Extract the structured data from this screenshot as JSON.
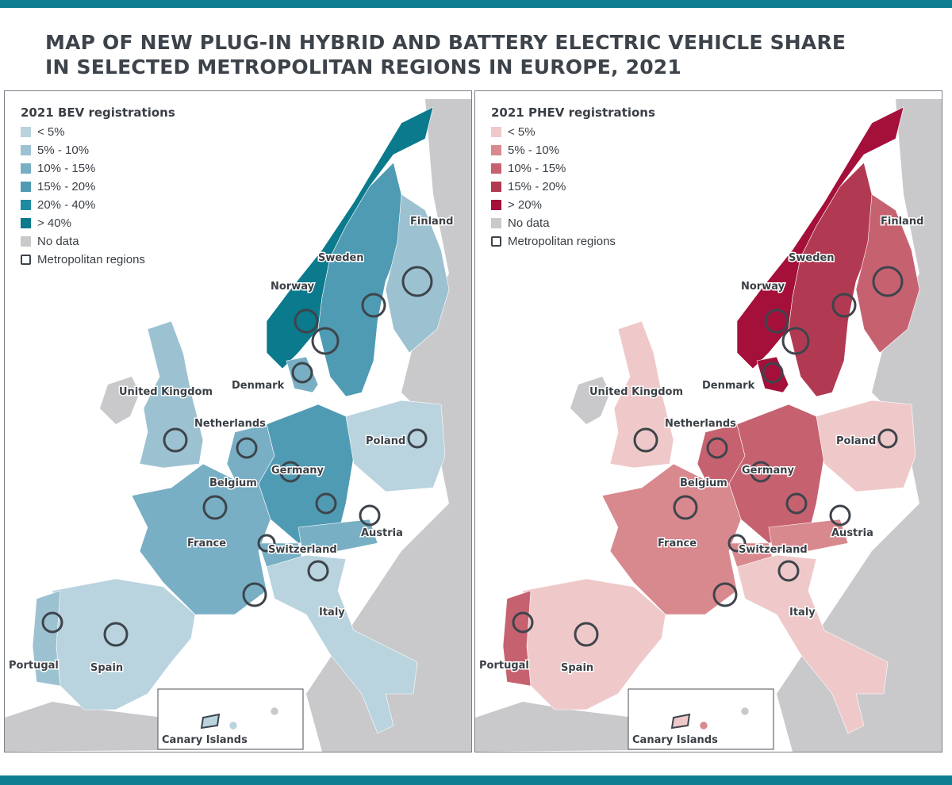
{
  "page": {
    "title_line1": "MAP OF NEW PLUG-IN HYBRID AND BATTERY ELECTRIC VEHICLE SHARE",
    "title_line2": "IN SELECTED METROPOLITAN REGIONS IN EUROPE, 2021",
    "accent_color": "#0f7e93"
  },
  "maps": [
    {
      "id": "bev",
      "legend_title": "2021 BEV registrations",
      "legend": [
        {
          "label": "< 5%",
          "color": "#b9d3df"
        },
        {
          "label": "5% - 10%",
          "color": "#9cc2d2"
        },
        {
          "label": "10% - 15%",
          "color": "#78afc5"
        },
        {
          "label": "15% - 20%",
          "color": "#4f9bb3"
        },
        {
          "label": "20% - 40%",
          "color": "#1f8aa0"
        },
        {
          "label": "> 40%",
          "color": "#0a7a8c"
        },
        {
          "label": "No data",
          "color": "#c9c9cc"
        },
        {
          "label": "Metropolitan regions",
          "color": "outline"
        }
      ],
      "countries": {
        "finland": "Finland",
        "sweden": "Sweden",
        "norway": "Norway",
        "denmark": "Denmark",
        "united_kingdom": "United Kingdom",
        "netherlands": "Netherlands",
        "belgium": "Belgium",
        "germany": "Germany",
        "poland": "Poland",
        "france": "France",
        "switzerland": "Switzerland",
        "austria": "Austria",
        "italy": "Italy",
        "spain": "Spain",
        "portugal": "Portugal"
      },
      "inset_label": "Canary Islands"
    },
    {
      "id": "phev",
      "legend_title": "2021 PHEV registrations",
      "legend": [
        {
          "label": "< 5%",
          "color": "#efc9c9"
        },
        {
          "label": "5% - 10%",
          "color": "#d8898e"
        },
        {
          "label": "10% - 15%",
          "color": "#c66270"
        },
        {
          "label": "15% - 20%",
          "color": "#b13a52"
        },
        {
          "label": "> 20%",
          "color": "#a4103a"
        },
        {
          "label": "No data",
          "color": "#c9c9cc"
        },
        {
          "label": "Metropolitan regions",
          "color": "outline"
        }
      ],
      "countries": {
        "finland": "Finland",
        "sweden": "Sweden",
        "norway": "Norway",
        "denmark": "Denmark",
        "united_kingdom": "United Kingdom",
        "netherlands": "Netherlands",
        "belgium": "Belgium",
        "germany": "Germany",
        "poland": "Poland",
        "france": "France",
        "switzerland": "Switzerland",
        "austria": "Austria",
        "italy": "Italy",
        "spain": "Spain",
        "portugal": "Portugal"
      },
      "inset_label": "Canary Islands"
    }
  ]
}
